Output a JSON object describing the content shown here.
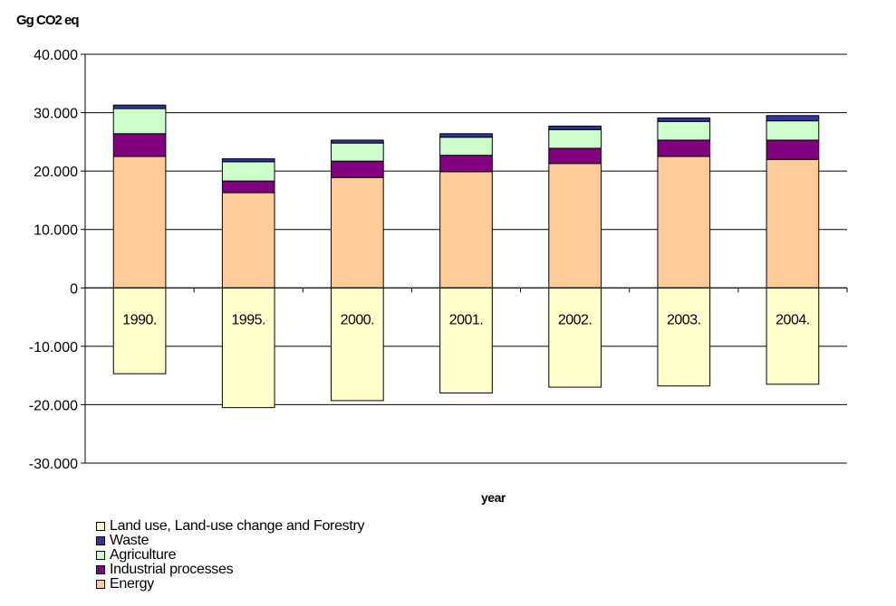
{
  "chart_data": {
    "type": "bar",
    "stacked": true,
    "ylabel": "Gg CO2 eq",
    "xlabel": "year",
    "ylim": [
      -30000,
      40000
    ],
    "yticks": [
      40000,
      30000,
      20000,
      10000,
      0,
      -10000,
      -20000,
      -30000
    ],
    "ytick_labels": [
      "40.000",
      "30.000",
      "20.000",
      "10.000",
      "0",
      "-10.000",
      "-20.000",
      "-30.000"
    ],
    "categories": [
      "1990.",
      "1995.",
      "2000.",
      "2001.",
      "2002.",
      "2003.",
      "2004."
    ],
    "grid": true,
    "legend_position": "bottom-left",
    "series": [
      {
        "name": "Energy",
        "color": "#FFCC99",
        "values": [
          22500,
          16300,
          18900,
          19900,
          21300,
          22500,
          22000
        ]
      },
      {
        "name": "Industrial processes",
        "color": "#800080",
        "values": [
          3900,
          2000,
          2800,
          2800,
          2600,
          2800,
          3300
        ]
      },
      {
        "name": "Agriculture",
        "color": "#CCFFCC",
        "values": [
          4300,
          3300,
          3100,
          3100,
          3200,
          3200,
          3300
        ]
      },
      {
        "name": "Waste",
        "color": "#333399",
        "values": [
          600,
          500,
          500,
          600,
          600,
          600,
          900
        ]
      },
      {
        "name": "Land use, Land-use change and Forestry",
        "color": "#FFFFCC",
        "values": [
          -14700,
          -20500,
          -19300,
          -18000,
          -17000,
          -16800,
          -16500
        ]
      }
    ],
    "legend_order": [
      "Land use, Land-use change and Forestry",
      "Waste",
      "Agriculture",
      "Industrial processes",
      "Energy"
    ]
  }
}
